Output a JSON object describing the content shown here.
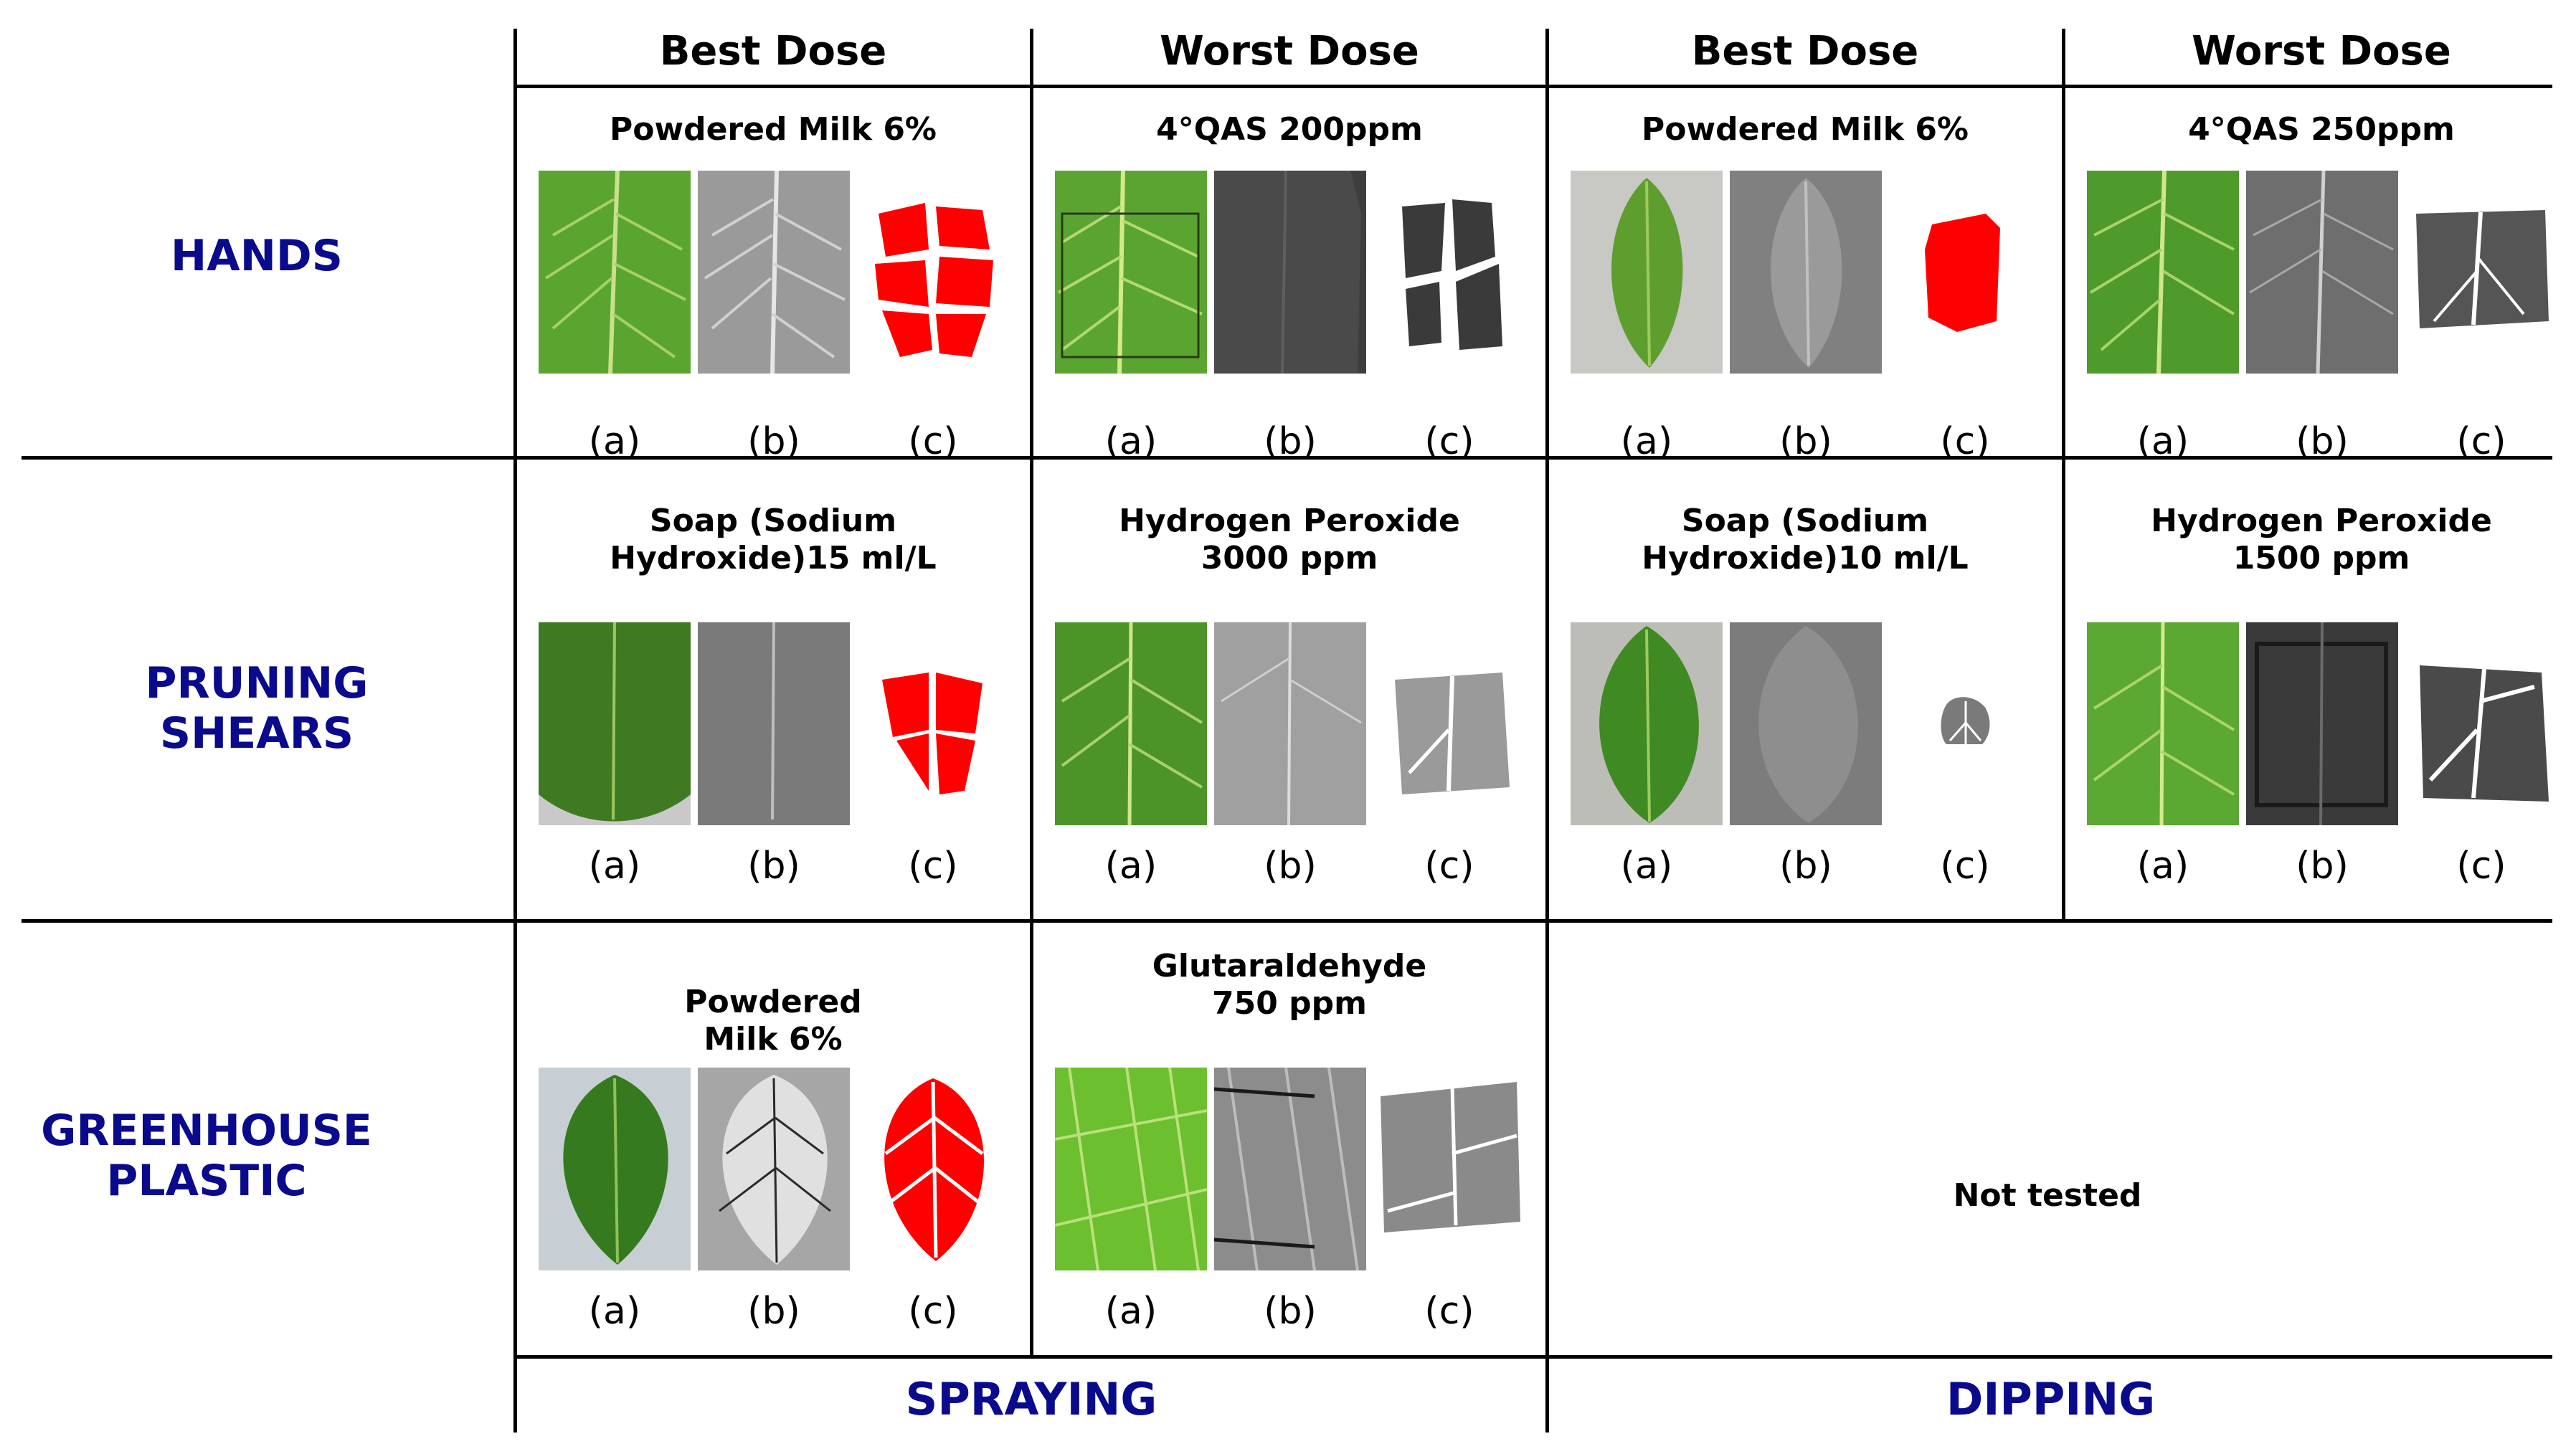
{
  "column_headers": [
    "Best Dose",
    "Worst Dose",
    "Best Dose",
    "Worst Dose"
  ],
  "row_labels": [
    {
      "line1": "HANDS",
      "line2": ""
    },
    {
      "line1": "PRUNING",
      "line2": "SHEARS"
    },
    {
      "line1": "GREENHOUSE",
      "line2": "PLASTIC"
    }
  ],
  "cells": {
    "hands_spray_best": {
      "title1": "Powdered Milk 6%",
      "title2": ""
    },
    "hands_spray_worst": {
      "title1": "4°QAS 200ppm",
      "title2": ""
    },
    "hands_dip_best": {
      "title1": "Powdered Milk 6%",
      "title2": ""
    },
    "hands_dip_worst": {
      "title1": "4°QAS 250ppm",
      "title2": ""
    },
    "shears_spray_best": {
      "title1": "Soap (Sodium",
      "title2": "Hydroxide)15 ml/L"
    },
    "shears_spray_worst": {
      "title1": "Hydrogen Peroxide",
      "title2": "3000 ppm"
    },
    "shears_dip_best": {
      "title1": "Soap (Sodium",
      "title2": "Hydroxide)10 ml/L"
    },
    "shears_dip_worst": {
      "title1": "Hydrogen Peroxide",
      "title2": "1500 ppm"
    },
    "plastic_spray_best": {
      "title1": "Powdered",
      "title2": "Milk 6%"
    },
    "plastic_spray_worst": {
      "title1": "Glutaraldehyde",
      "title2": "750 ppm"
    }
  },
  "image_captions": [
    "(a)",
    "(b)",
    "(c)"
  ],
  "not_tested": "Not tested",
  "footer": {
    "spraying": "SPRAYING",
    "dipping": "DIPPING"
  },
  "colors": {
    "label_blue": "#0a0a8c",
    "leaf_green": "#4f9a2c",
    "mask_red": "#ff0000",
    "mask_gray": "#5a5a5a"
  }
}
